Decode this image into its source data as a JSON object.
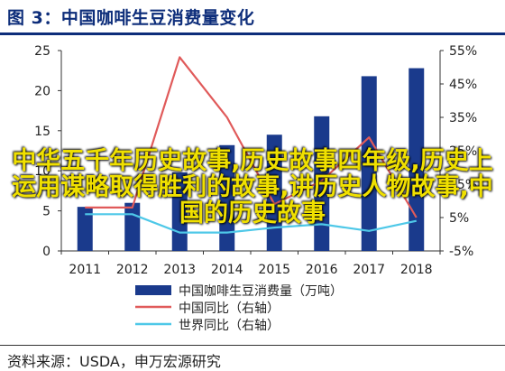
{
  "title": "图 3：中国咖啡生豆消费量变化",
  "source": "资料来源：USDA，申万宏源研究",
  "overlay_text": "中华五千年历史故事,历史故事四年级,历史上运用谋略取得胜利的故事,讲历史人物故事,中国的历史故事",
  "colors": {
    "bar": "#1a3a8c",
    "china_yoy": "#e05a5a",
    "world_yoy": "#4ec8e8",
    "axis": "#333333",
    "title": "#0d2d7a"
  },
  "chart_data": {
    "type": "bar",
    "title": "",
    "categories": [
      "2011",
      "2012",
      "2013",
      "2014",
      "2015",
      "2016",
      "2017",
      "2018"
    ],
    "left_axis": {
      "ylim": [
        0,
        25
      ],
      "ticks": [
        "0",
        "5",
        "10",
        "15",
        "20",
        "25"
      ]
    },
    "right_axis": {
      "ylim": [
        -5,
        55
      ],
      "ticks": [
        "-5%",
        "5%",
        "15%",
        "25%",
        "35%",
        "45%",
        "55%"
      ]
    },
    "series": [
      {
        "name": "中国咖啡生豆消费量（万吨）",
        "type": "bar",
        "axis": "left",
        "values": [
          5.5,
          6.0,
          9.8,
          13.2,
          14.5,
          16.8,
          21.8,
          22.8
        ]
      },
      {
        "name": "中国同比（右轴）",
        "type": "line",
        "axis": "right",
        "values": [
          8,
          8,
          53,
          35,
          9,
          16,
          29,
          5
        ]
      },
      {
        "name": "世界同比（右轴）",
        "type": "line",
        "axis": "right",
        "values": [
          6,
          6,
          0.5,
          0.5,
          2,
          3,
          1,
          4
        ]
      }
    ],
    "legend_position": "bottom"
  }
}
